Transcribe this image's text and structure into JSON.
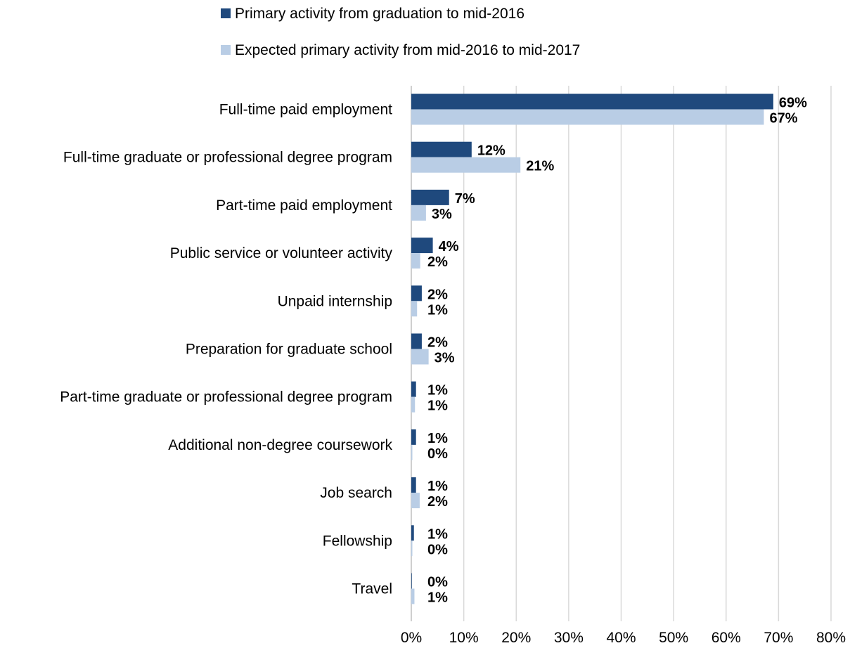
{
  "chart_data": {
    "type": "bar",
    "orientation": "horizontal",
    "categories": [
      "Full-time paid employment",
      "Full-time graduate or professional degree program",
      "Part-time paid employment",
      "Public service or volunteer activity",
      "Unpaid internship",
      "Preparation for graduate school",
      "Part-time graduate or professional degree program",
      "Additional non-degree coursework",
      "Job search",
      "Fellowship",
      "Travel"
    ],
    "series": [
      {
        "name": "Primary activity from graduation to mid-2016",
        "color": "#1f497d",
        "values": [
          69.0,
          11.5,
          7.2,
          4.1,
          2.0,
          2.0,
          0.9,
          0.9,
          0.9,
          0.5,
          0.1
        ],
        "labels": [
          "69%",
          "12%",
          "7%",
          "4%",
          "2%",
          "2%",
          "1%",
          "1%",
          "1%",
          "1%",
          "0%"
        ]
      },
      {
        "name": "Expected primary activity from mid-2016 to mid-2017",
        "color": "#b9cde5",
        "values": [
          67.2,
          20.8,
          2.8,
          1.7,
          1.1,
          3.3,
          0.7,
          0.2,
          1.6,
          0.2,
          0.6
        ],
        "labels": [
          "67%",
          "21%",
          "3%",
          "2%",
          "1%",
          "3%",
          "1%",
          "0%",
          "2%",
          "0%",
          "1%"
        ]
      }
    ],
    "x_ticks": [
      "0%",
      "10%",
      "20%",
      "30%",
      "40%",
      "50%",
      "60%",
      "70%",
      "80%"
    ],
    "xlim": [
      0,
      80
    ],
    "grid": true,
    "legend_position": "top"
  }
}
